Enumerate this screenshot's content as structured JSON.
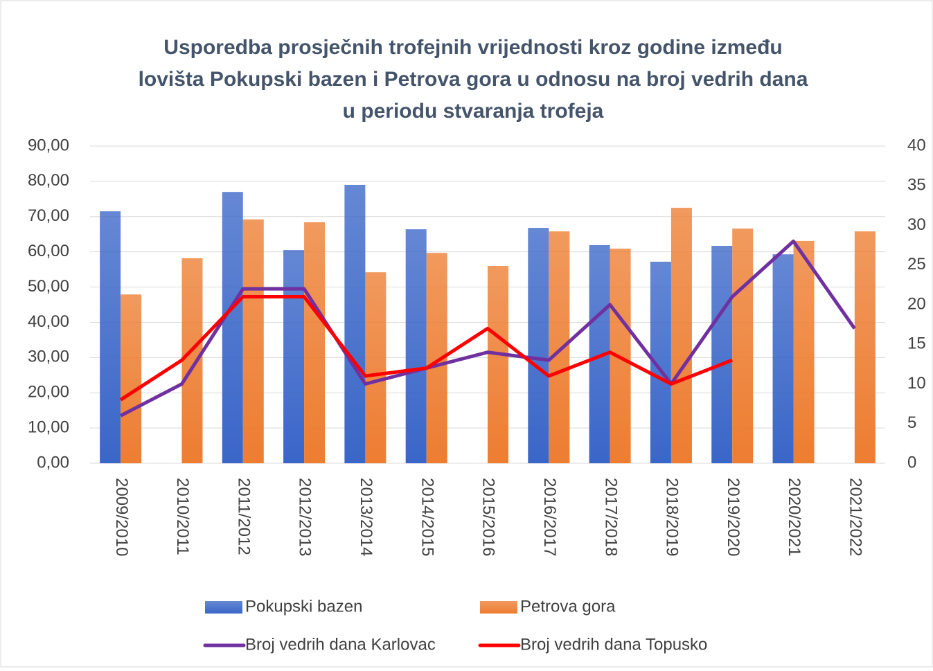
{
  "chart_data": {
    "type": "bar_line",
    "title": [
      "Usporedba prosječnih trofejnih vrijednosti kroz godine između",
      "lovišta Pokupski bazen i Petrova gora u odnosu na broj vedrih dana",
      "u periodu stvaranja trofeja"
    ],
    "categories": [
      "2009/2010",
      "2010/2011",
      "2011/2012",
      "2012/2013",
      "2013/2014",
      "2014/2015",
      "2015/2016",
      "2016/2017",
      "2017/2018",
      "2018/2019",
      "2019/2020",
      "2020/2021",
      "2021/2022"
    ],
    "series": [
      {
        "name": "Pokupski bazen",
        "type": "bar",
        "color": "#3a66c8",
        "values": [
          71.5,
          null,
          77.0,
          60.5,
          79.0,
          66.4,
          null,
          66.8,
          61.9,
          57.2,
          61.7,
          59.3,
          null
        ]
      },
      {
        "name": "Petrova gora",
        "type": "bar",
        "color": "#ed7d31",
        "values": [
          47.9,
          58.2,
          69.2,
          68.4,
          54.2,
          59.7,
          56.0,
          65.8,
          60.9,
          72.5,
          66.6,
          63.1,
          65.8
        ]
      },
      {
        "name": "Broj vedrih dana Karlovac",
        "type": "line",
        "axis": "y2",
        "color": "#7030a0",
        "values": [
          6,
          10,
          22,
          22,
          10,
          12,
          14,
          13,
          20,
          10,
          21,
          28,
          17
        ]
      },
      {
        "name": "Broj vedrih dana Topusko",
        "type": "line",
        "axis": "y2",
        "color": "#ff0000",
        "values": [
          8,
          13,
          21,
          21,
          11,
          12,
          17,
          11,
          14,
          10,
          13,
          null,
          null
        ]
      }
    ],
    "ylim": [
      0,
      90
    ],
    "yticks": [
      {
        "value": 0,
        "label": "0,00"
      },
      {
        "value": 10,
        "label": "10,00"
      },
      {
        "value": 20,
        "label": "20,00"
      },
      {
        "value": 30,
        "label": "30,00"
      },
      {
        "value": 40,
        "label": "40,00"
      },
      {
        "value": 50,
        "label": "50,00"
      },
      {
        "value": 60,
        "label": "60,00"
      },
      {
        "value": 70,
        "label": "70,00"
      },
      {
        "value": 80,
        "label": "80,00"
      },
      {
        "value": 90,
        "label": "90,00"
      }
    ],
    "y2lim": [
      0,
      40
    ],
    "y2ticks": [
      0,
      5,
      10,
      15,
      20,
      25,
      30,
      35,
      40
    ],
    "grid": true,
    "legend": "bottom"
  }
}
